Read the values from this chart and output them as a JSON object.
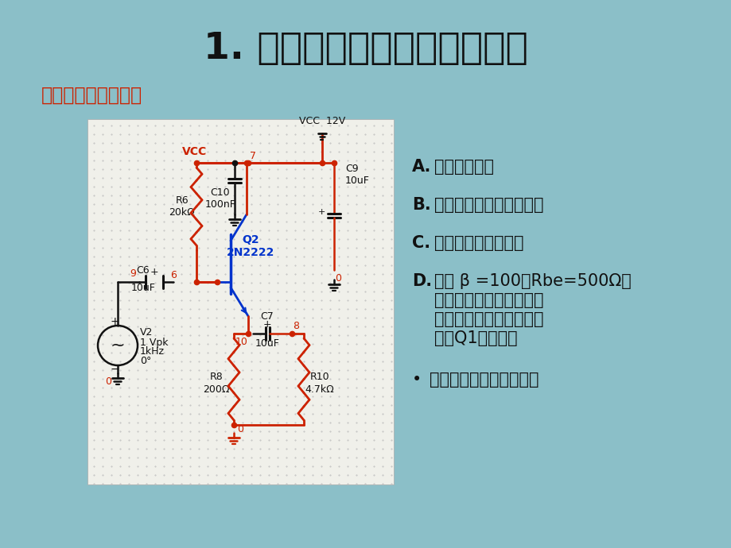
{
  "bg_color": "#8bbfc8",
  "title": "1. 三极管共发、共集放大电路",
  "subtitle": "三极管共集放大电路",
  "subtitle_color": "#cc2200",
  "circuit_bg": "#f0f0ea",
  "red": "#cc2200",
  "blue": "#0033cc",
  "black": "#111111",
  "item_A": "电路工作原理",
  "item_B": "原理电路与应用电路差异",
  "item_C": "直流特性、交流特性",
  "item_D1": "如按 β =100、Rbe=500Ω，",
  "item_D2": "计算电路直流工作点、输",
  "item_D3": "入输出阻抗、交流放大倍",
  "item_D4": "数和Q1的功耗。",
  "item_E": "共集放大器特点及应用。"
}
